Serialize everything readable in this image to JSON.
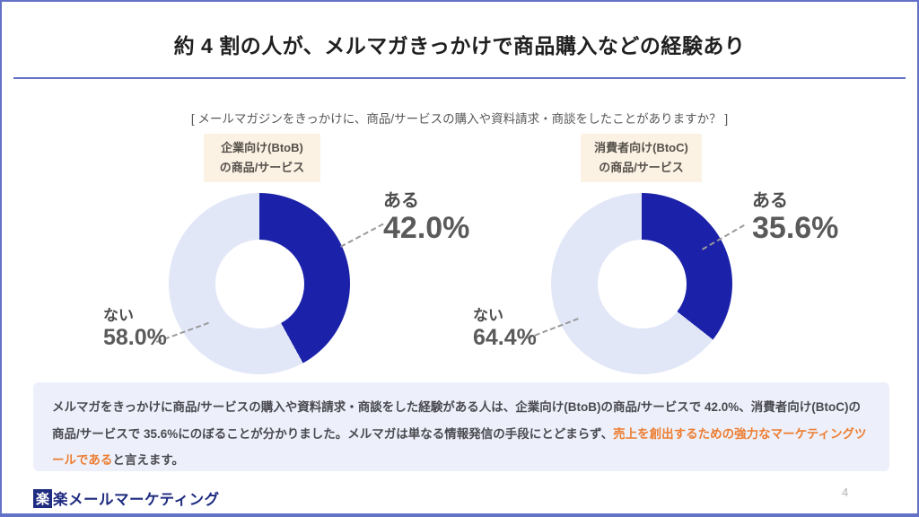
{
  "page": {
    "title": "約 4 割の人が、メルマガきっかけで商品購入などの経験あり",
    "question": "[ メールマガジンをきっかけに、商品/サービスの購入や資料請求・商談をしたことがありますか？ ]",
    "page_number": "4",
    "logo": {
      "mark": "楽",
      "text": "楽メールマーケティング"
    }
  },
  "chart_data": [
    {
      "type": "pie",
      "donut": true,
      "inner_radius_ratio": 0.49,
      "start_angle_deg": 0,
      "title_lines": [
        "企業向け(BtoB)",
        "の商品/サービス"
      ],
      "categories": [
        "ある",
        "ない"
      ],
      "values": [
        42.0,
        58.0
      ],
      "labels": [
        "42.0%",
        "58.0%"
      ],
      "colors": [
        "#1b22a9",
        "#e2e7f8"
      ],
      "legend": "none"
    },
    {
      "type": "pie",
      "donut": true,
      "inner_radius_ratio": 0.49,
      "start_angle_deg": 0,
      "title_lines": [
        "消費者向け(BtoC)",
        "の商品/サービス"
      ],
      "categories": [
        "ある",
        "ない"
      ],
      "values": [
        35.6,
        64.4
      ],
      "labels": [
        "35.6%",
        "64.4%"
      ],
      "colors": [
        "#1b22a9",
        "#e2e7f8"
      ],
      "legend": "none"
    }
  ],
  "summary": {
    "text_before": "メルマガをきっかけに商品/サービスの購入や資料請求・商談をした経験がある人は、企業向け(BtoB)の商品/サービスで 42.0%、消費者向け(BtoC)の商品/サービスで 35.6%にのぼることが分かりました。メルマガは単なる情報発信の手段にとどまらず、",
    "text_highlight": "売上を創出するための強力なマーケティングツールである",
    "text_after": "と言えます。",
    "highlight_color": "#ed7d31"
  },
  "colors": {
    "accent_blue": "#1b22a9",
    "light_slice": "#e2e7f8",
    "border_blue": "#6372c6",
    "label_box_bg": "#fbf2e4",
    "summary_bg": "#edf0fa",
    "logo_navy": "#1e2b80",
    "highlight_orange": "#ed7d31"
  }
}
